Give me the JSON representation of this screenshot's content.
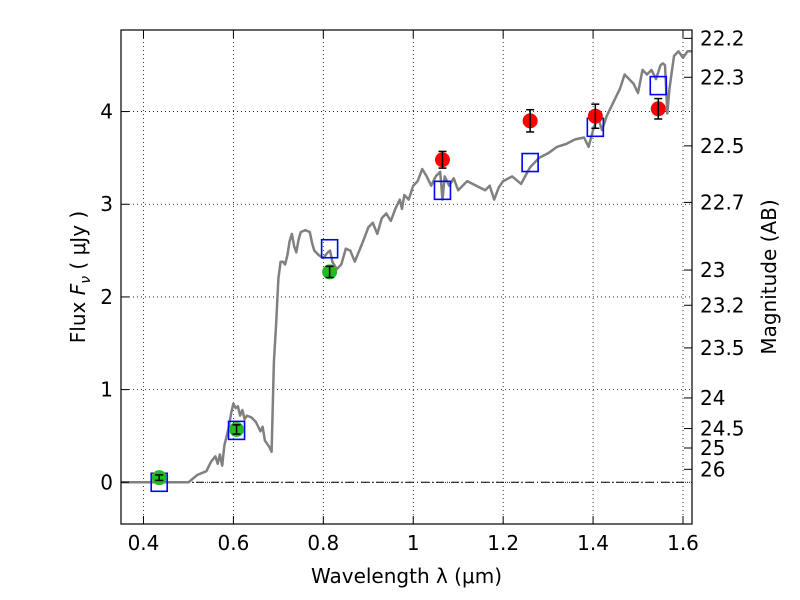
{
  "chart_data": {
    "type": "scatter",
    "xlabel": "Wavelength  λ (μm)",
    "ylabel": "Flux  F_ν  ( μJy )",
    "ylabel_right": "Magnitude (AB)",
    "xlim": [
      0.35,
      1.62
    ],
    "ylim": [
      -0.45,
      4.88
    ],
    "grid": true,
    "x_ticks": [
      0.4,
      0.6,
      0.8,
      1.0,
      1.2,
      1.4,
      1.6
    ],
    "x_tick_labels": [
      "0.4",
      "0.6",
      "0.8",
      "1",
      "1.2",
      "1.4",
      "1.6"
    ],
    "y_ticks": [
      0,
      1,
      2,
      3,
      4
    ],
    "y_tick_labels": [
      "0",
      "1",
      "2",
      "3",
      "4"
    ],
    "right_ticks": [
      {
        "label": "22.2",
        "flux": 4.79
      },
      {
        "label": "22.3",
        "flux": 4.37
      },
      {
        "label": "22.5",
        "flux": 3.63
      },
      {
        "label": "22.7",
        "flux": 3.02
      },
      {
        "label": "23",
        "flux": 2.29
      },
      {
        "label": "23.2",
        "flux": 1.91
      },
      {
        "label": "23.5",
        "flux": 1.45
      },
      {
        "label": "24",
        "flux": 0.91
      },
      {
        "label": "24.5",
        "flux": 0.58
      },
      {
        "label": "25",
        "flux": 0.37
      },
      {
        "label": "26",
        "flux": 0.14
      }
    ],
    "series": [
      {
        "marker": "line",
        "color": "#808080",
        "points": [
          [
            0.35,
            0.0
          ],
          [
            0.5,
            0.0
          ],
          [
            0.52,
            0.08
          ],
          [
            0.54,
            0.12
          ],
          [
            0.55,
            0.22
          ],
          [
            0.56,
            0.28
          ],
          [
            0.565,
            0.2
          ],
          [
            0.57,
            0.3
          ],
          [
            0.575,
            0.18
          ],
          [
            0.58,
            0.4
          ],
          [
            0.585,
            0.5
          ],
          [
            0.59,
            0.6
          ],
          [
            0.595,
            0.75
          ],
          [
            0.6,
            0.85
          ],
          [
            0.605,
            0.8
          ],
          [
            0.61,
            0.82
          ],
          [
            0.615,
            0.72
          ],
          [
            0.62,
            0.78
          ],
          [
            0.625,
            0.68
          ],
          [
            0.63,
            0.72
          ],
          [
            0.64,
            0.7
          ],
          [
            0.65,
            0.65
          ],
          [
            0.66,
            0.55
          ],
          [
            0.665,
            0.6
          ],
          [
            0.67,
            0.45
          ],
          [
            0.68,
            0.38
          ],
          [
            0.685,
            0.33
          ],
          [
            0.69,
            1.3
          ],
          [
            0.695,
            1.7
          ],
          [
            0.7,
            2.2
          ],
          [
            0.705,
            2.38
          ],
          [
            0.71,
            2.38
          ],
          [
            0.715,
            2.35
          ],
          [
            0.72,
            2.45
          ],
          [
            0.725,
            2.6
          ],
          [
            0.73,
            2.68
          ],
          [
            0.735,
            2.55
          ],
          [
            0.74,
            2.48
          ],
          [
            0.745,
            2.62
          ],
          [
            0.75,
            2.7
          ],
          [
            0.76,
            2.72
          ],
          [
            0.77,
            2.7
          ],
          [
            0.775,
            2.58
          ],
          [
            0.78,
            2.5
          ],
          [
            0.79,
            2.45
          ],
          [
            0.8,
            2.42
          ],
          [
            0.81,
            2.48
          ],
          [
            0.815,
            2.5
          ],
          [
            0.82,
            2.38
          ],
          [
            0.83,
            2.3
          ],
          [
            0.84,
            2.35
          ],
          [
            0.85,
            2.52
          ],
          [
            0.86,
            2.5
          ],
          [
            0.87,
            2.38
          ],
          [
            0.88,
            2.5
          ],
          [
            0.89,
            2.62
          ],
          [
            0.9,
            2.75
          ],
          [
            0.91,
            2.8
          ],
          [
            0.92,
            2.68
          ],
          [
            0.93,
            2.85
          ],
          [
            0.94,
            2.9
          ],
          [
            0.95,
            2.82
          ],
          [
            0.96,
            2.95
          ],
          [
            0.97,
            3.05
          ],
          [
            0.975,
            2.95
          ],
          [
            0.98,
            3.1
          ],
          [
            0.99,
            3.05
          ],
          [
            1.0,
            3.2
          ],
          [
            1.01,
            3.25
          ],
          [
            1.02,
            3.38
          ],
          [
            1.03,
            3.3
          ],
          [
            1.04,
            3.2
          ],
          [
            1.05,
            3.3
          ],
          [
            1.06,
            3.35
          ],
          [
            1.065,
            3.05
          ],
          [
            1.07,
            3.3
          ],
          [
            1.08,
            3.2
          ],
          [
            1.09,
            3.28
          ],
          [
            1.1,
            3.15
          ],
          [
            1.12,
            3.25
          ],
          [
            1.14,
            3.2
          ],
          [
            1.16,
            3.15
          ],
          [
            1.17,
            3.2
          ],
          [
            1.18,
            3.05
          ],
          [
            1.19,
            3.18
          ],
          [
            1.2,
            3.25
          ],
          [
            1.22,
            3.3
          ],
          [
            1.24,
            3.22
          ],
          [
            1.26,
            3.4
          ],
          [
            1.28,
            3.5
          ],
          [
            1.3,
            3.55
          ],
          [
            1.32,
            3.62
          ],
          [
            1.34,
            3.65
          ],
          [
            1.36,
            3.7
          ],
          [
            1.38,
            3.72
          ],
          [
            1.39,
            3.62
          ],
          [
            1.4,
            3.8
          ],
          [
            1.41,
            3.95
          ],
          [
            1.42,
            3.8
          ],
          [
            1.43,
            3.95
          ],
          [
            1.44,
            4.05
          ],
          [
            1.45,
            4.15
          ],
          [
            1.46,
            4.25
          ],
          [
            1.47,
            4.4
          ],
          [
            1.48,
            4.35
          ],
          [
            1.49,
            4.3
          ],
          [
            1.5,
            4.2
          ],
          [
            1.51,
            4.45
          ],
          [
            1.52,
            4.4
          ],
          [
            1.53,
            4.45
          ],
          [
            1.54,
            4.35
          ],
          [
            1.55,
            4.5
          ],
          [
            1.555,
            4.52
          ],
          [
            1.56,
            4.5
          ],
          [
            1.565,
            3.98
          ],
          [
            1.57,
            4.25
          ],
          [
            1.58,
            4.6
          ],
          [
            1.59,
            4.65
          ],
          [
            1.6,
            4.58
          ],
          [
            1.61,
            4.65
          ],
          [
            1.62,
            4.65
          ]
        ]
      },
      {
        "marker": "square",
        "color": "#0000ff",
        "points": [
          [
            0.435,
            0.0
          ],
          [
            0.607,
            0.56
          ],
          [
            0.814,
            2.52
          ],
          [
            1.065,
            3.15
          ],
          [
            1.26,
            3.45
          ],
          [
            1.405,
            3.83
          ],
          [
            1.545,
            4.28
          ]
        ]
      },
      {
        "marker": "circle",
        "color": "#22bb22",
        "points": [
          [
            0.435,
            0.05,
            0.03
          ],
          [
            0.607,
            0.57,
            0.05
          ],
          [
            0.814,
            2.27,
            0.06
          ]
        ]
      },
      {
        "marker": "circle",
        "color": "#ff0000",
        "points": [
          [
            1.065,
            3.48,
            0.09
          ],
          [
            1.26,
            3.9,
            0.12
          ],
          [
            1.405,
            3.95,
            0.13
          ],
          [
            1.545,
            4.03,
            0.11
          ]
        ]
      }
    ]
  }
}
